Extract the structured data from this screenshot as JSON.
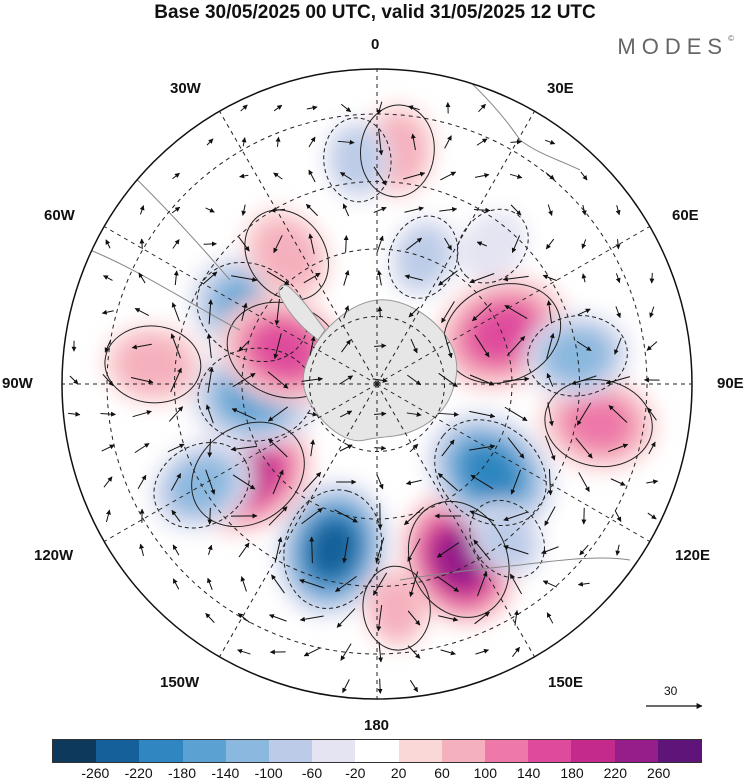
{
  "title": "Base 30/05/2025 00 UTC, valid 31/05/2025 12 UTC",
  "brand": "MODES",
  "brand_mark": "©",
  "map": {
    "projection": "south-polar-stereographic",
    "lon_labels": {
      "top": "0",
      "top_right": "30E",
      "right_upper": "60E",
      "right": "90E",
      "right_lower": "120E",
      "bottom_right": "150E",
      "bottom": "180",
      "bottom_left": "150W",
      "left_lower": "120W",
      "left": "90W",
      "left_upper": "60W",
      "top_left": "30W"
    },
    "vector_scale_label": "30"
  },
  "colorbar": {
    "colors": [
      "#0d3a5c",
      "#15609a",
      "#2f86c0",
      "#5ba2d3",
      "#8ab8de",
      "#bccce8",
      "#e4e4f2",
      "#ffffff",
      "#fbd8d8",
      "#f5b0bd",
      "#ee78a8",
      "#df4b9c",
      "#c42a8c",
      "#951e8a",
      "#5e1479"
    ],
    "ticks": [
      "-260",
      "-220",
      "-180",
      "-140",
      "-100",
      "-60",
      "-20",
      "20",
      "60",
      "100",
      "140",
      "180",
      "220",
      "260"
    ]
  },
  "anomalies": [
    {
      "lat": -52,
      "lon": -165,
      "value": -220
    },
    {
      "lat": -47,
      "lon": 155,
      "value": 230
    },
    {
      "lat": -55,
      "lon": -125,
      "value": 200
    },
    {
      "lat": -58,
      "lon": 128,
      "value": -180
    },
    {
      "lat": -60,
      "lon": 68,
      "value": 170
    },
    {
      "lat": -58,
      "lon": -60,
      "value": -140
    },
    {
      "lat": -63,
      "lon": -95,
      "value": -140
    },
    {
      "lat": -68,
      "lon": -70,
      "value": 140
    },
    {
      "lat": -40,
      "lon": 100,
      "value": 120
    },
    {
      "lat": -45,
      "lon": 82,
      "value": -100
    },
    {
      "lat": -40,
      "lon": -85,
      "value": 90
    },
    {
      "lat": -45,
      "lon": -120,
      "value": -100
    },
    {
      "lat": -38,
      "lon": 5,
      "value": 80
    },
    {
      "lat": -40,
      "lon": -5,
      "value": -60
    },
    {
      "lat": -55,
      "lon": -35,
      "value": 90
    },
    {
      "lat": -60,
      "lon": 20,
      "value": -60
    },
    {
      "lat": -50,
      "lon": 40,
      "value": -50
    },
    {
      "lat": -45,
      "lon": 140,
      "value": -60
    },
    {
      "lat": -40,
      "lon": 175,
      "value": 60
    }
  ]
}
